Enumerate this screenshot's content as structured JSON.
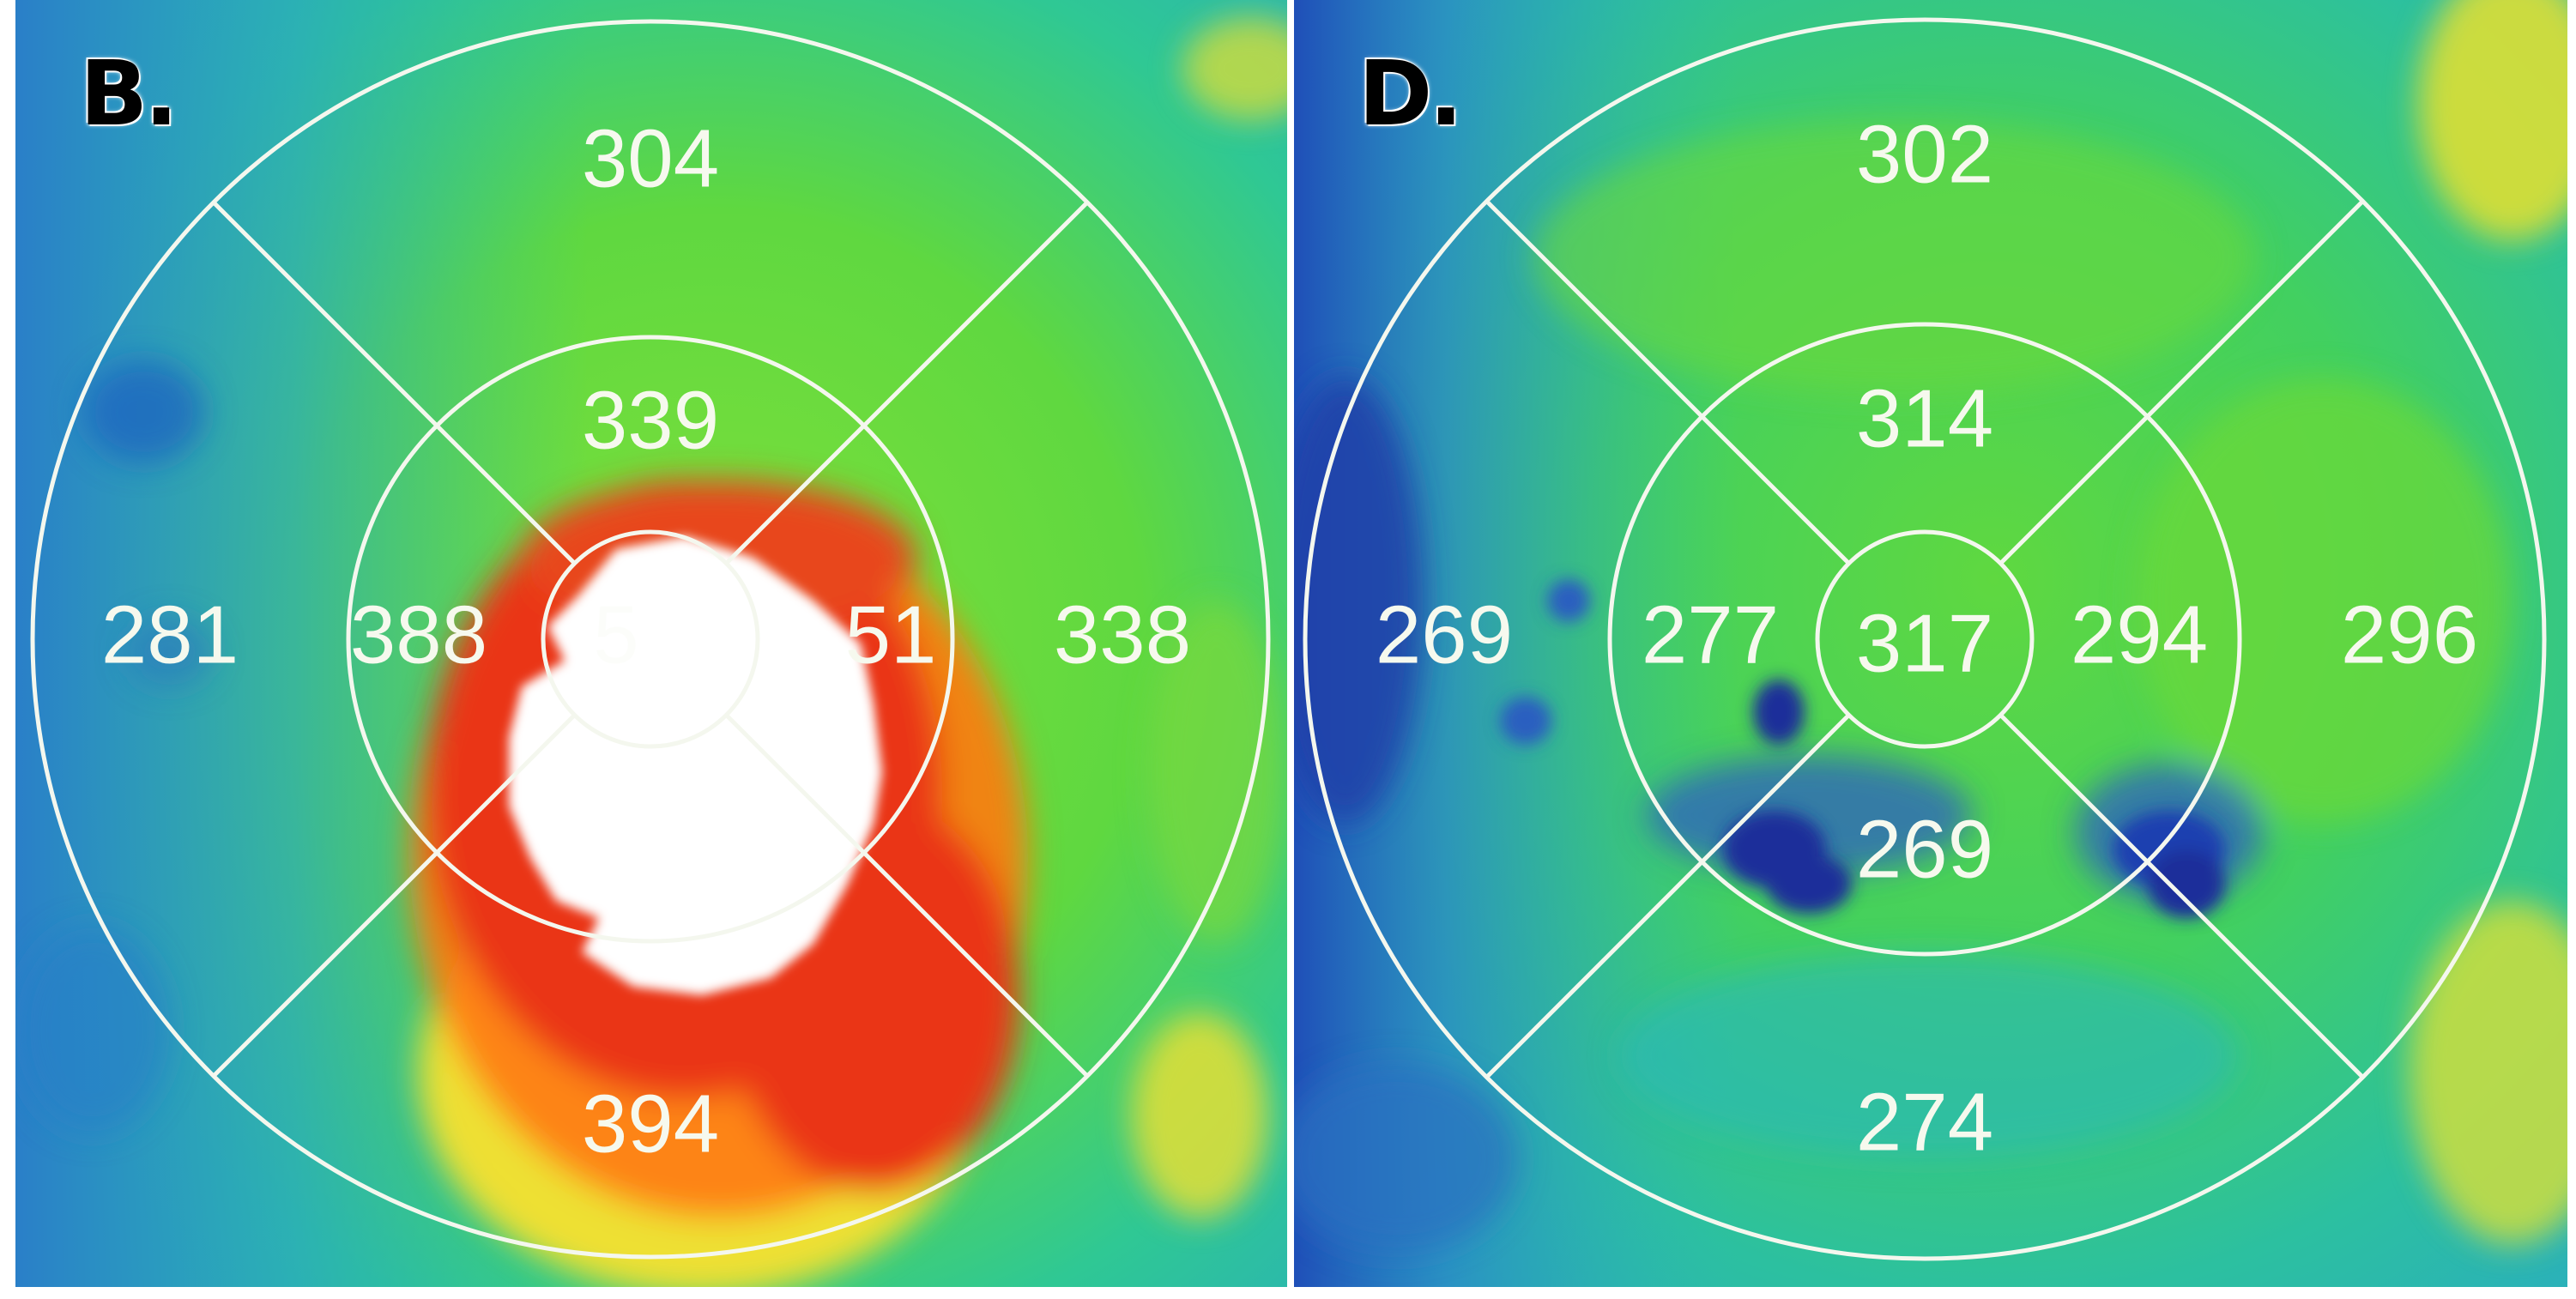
{
  "panels": [
    {
      "label": "B.",
      "segments": {
        "outer_top": "304",
        "outer_left": "281",
        "outer_right": "338",
        "outer_bottom": "394",
        "inner_top": "339",
        "inner_left": "388",
        "inner_right": "51",
        "inner_bottom": "",
        "center": "5"
      }
    },
    {
      "label": "D.",
      "segments": {
        "outer_top": "302",
        "outer_left": "269",
        "outer_right": "296",
        "outer_bottom": "274",
        "inner_top": "314",
        "inner_left": "277",
        "inner_right": "294",
        "inner_bottom": "269",
        "center": "317"
      }
    }
  ],
  "colors": {
    "grid": "#f4f7ee",
    "thickening_red": "#e8281a",
    "thickening_white": "#ffffff",
    "normal_green": "#5fd83a",
    "thin_blue": "#1f4fb8"
  }
}
